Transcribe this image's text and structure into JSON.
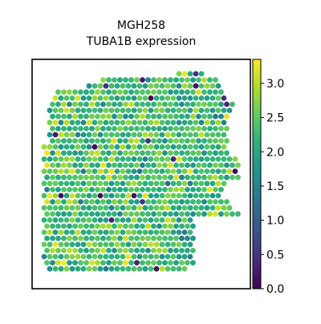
{
  "chart_data": {
    "type": "scatter",
    "subtype": "spatial-hex-spot-map",
    "title_line1": "MGH258",
    "title_line2": "TUBA1B expression",
    "xlabel": "",
    "ylabel": "",
    "grid": false,
    "axes_ticks_shown": false,
    "legend": "colorbar-right",
    "colormap": "viridis",
    "color_range": [
      0.0,
      3.35
    ],
    "colorbar_ticks": [
      0.0,
      0.5,
      1.0,
      1.5,
      2.0,
      2.5,
      3.0
    ],
    "colorbar_tick_labels": [
      "0.0",
      "0.5",
      "1.0",
      "1.5",
      "2.0",
      "2.5",
      "3.0"
    ],
    "spot_value_typical_range": [
      1.6,
      3.0
    ],
    "spot_value_median": 2.3,
    "low_outlier_spots_present": true,
    "tissue_grid_spacing": 1,
    "tissue_rows": [
      {
        "y": 0,
        "x_start": 24,
        "x_end": 28,
        "note": "top protrusion"
      },
      {
        "y": 1,
        "x_start": 10,
        "x_end": 30
      },
      {
        "y": 2,
        "x_start": 8,
        "x_end": 31
      },
      {
        "y": 3,
        "x_start": 2,
        "x_end": 31
      },
      {
        "y": 4,
        "x_start": 2,
        "x_end": 32
      },
      {
        "y": 5,
        "x_start": 1,
        "x_end": 33
      },
      {
        "y": 6,
        "x_start": 1,
        "x_end": 33
      },
      {
        "y": 7,
        "x_start": 1,
        "x_end": 32
      },
      {
        "y": 8,
        "x_start": 1,
        "x_end": 32
      },
      {
        "y": 9,
        "x_start": 1,
        "x_end": 32
      },
      {
        "y": 10,
        "x_start": 1,
        "x_end": 32
      },
      {
        "y": 11,
        "x_start": 1,
        "x_end": 32
      },
      {
        "y": 12,
        "x_start": 0,
        "x_end": 32
      },
      {
        "y": 13,
        "x_start": 0,
        "x_end": 32
      },
      {
        "y": 14,
        "x_start": 0,
        "x_end": 34
      },
      {
        "y": 15,
        "x_start": 0,
        "x_end": 34
      },
      {
        "y": 16,
        "x_start": 0,
        "x_end": 34
      },
      {
        "y": 17,
        "x_start": 0,
        "x_end": 34
      },
      {
        "y": 18,
        "x_start": 0,
        "x_end": 32
      },
      {
        "y": 19,
        "x_start": 0,
        "x_end": 31
      },
      {
        "y": 20,
        "x_start": 0,
        "x_end": 31
      },
      {
        "y": 21,
        "x_start": 0,
        "x_end": 32
      },
      {
        "y": 22,
        "x_start": 0,
        "x_end": 33
      },
      {
        "y": 23,
        "x_start": 0,
        "x_end": 34
      },
      {
        "y": 24,
        "x_start": 0,
        "x_end": 26
      },
      {
        "y": 25,
        "x_start": 0,
        "x_end": 26
      },
      {
        "y": 26,
        "x_start": 0,
        "x_end": 26
      },
      {
        "y": 27,
        "x_start": 0,
        "x_end": 26
      },
      {
        "y": 28,
        "x_start": 0,
        "x_end": 26
      },
      {
        "y": 29,
        "x_start": 0,
        "x_end": 26
      },
      {
        "y": 30,
        "x_start": 0,
        "x_end": 26
      },
      {
        "y": 31,
        "x_start": 0,
        "x_end": 26
      },
      {
        "y": 32,
        "x_start": 1,
        "x_end": 25
      }
    ]
  }
}
